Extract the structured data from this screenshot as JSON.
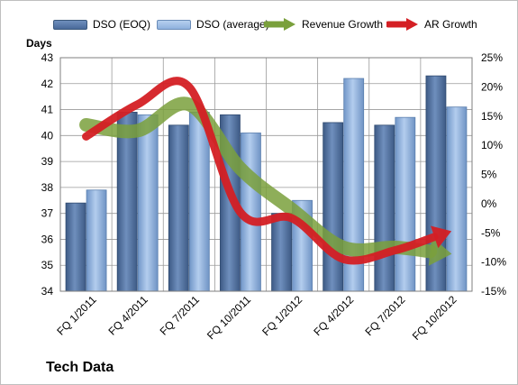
{
  "colors": {
    "dso_eoq": "#4a6a9a",
    "dso_avg": "#8fb1de",
    "revenue_growth": "#7aa03c",
    "ar_growth": "#d41f24",
    "grid": "#9a9a9a"
  },
  "legend": {
    "dso_eoq": "DSO (EOQ)",
    "dso_avg": "DSO (average)",
    "revenue_growth": "Revenue Growth",
    "ar_growth": "AR Growth"
  },
  "left_axis_title": "Days",
  "footer_title": "Tech Data",
  "chart_data": {
    "type": "bar",
    "categories": [
      "FQ 1/2011",
      "FQ 4/2011",
      "FQ 7/2011",
      "FQ 10/2011",
      "FQ 1/2012",
      "FQ 4/2012",
      "FQ 7/2012",
      "FQ 10/2012"
    ],
    "series": [
      {
        "name": "DSO (EOQ)",
        "axis": "left",
        "kind": "bar",
        "values": [
          37.4,
          40.9,
          40.4,
          40.8,
          37.0,
          40.5,
          40.4,
          42.3
        ]
      },
      {
        "name": "DSO (average)",
        "axis": "left",
        "kind": "bar",
        "values": [
          37.9,
          40.8,
          40.9,
          40.1,
          37.5,
          42.2,
          40.7,
          41.1
        ]
      },
      {
        "name": "Revenue Growth",
        "axis": "right",
        "kind": "line",
        "values": [
          0.135,
          0.125,
          0.17,
          0.06,
          -0.01,
          -0.075,
          -0.075,
          -0.085
        ]
      },
      {
        "name": "AR Growth",
        "axis": "right",
        "kind": "line",
        "values": [
          0.115,
          0.17,
          0.2,
          -0.015,
          -0.025,
          -0.095,
          -0.08,
          -0.05
        ]
      }
    ],
    "left_axis": {
      "min": 34,
      "max": 43,
      "step": 1,
      "ticks": [
        "34",
        "35",
        "36",
        "37",
        "38",
        "39",
        "40",
        "41",
        "42",
        "43"
      ]
    },
    "right_axis": {
      "min": -0.15,
      "max": 0.25,
      "step": 0.05,
      "ticks": [
        "-15%",
        "-10%",
        "-5%",
        "0%",
        "5%",
        "10%",
        "15%",
        "20%",
        "25%"
      ]
    },
    "grid": true,
    "legend_position": "top"
  }
}
